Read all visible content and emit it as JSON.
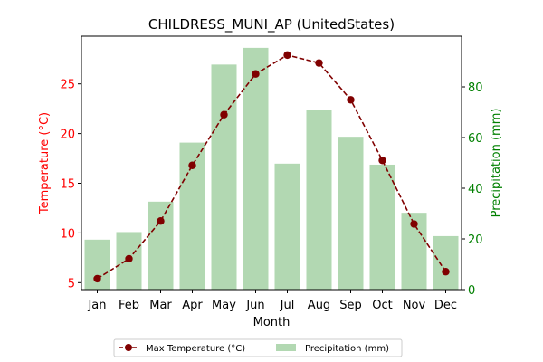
{
  "chart_data": {
    "type": "bar+line",
    "title": "CHILDRESS_MUNI_AP (UnitedStates)",
    "xlabel": "Month",
    "ylabel_left": "Temperature (°C)",
    "ylabel_right": "Precipitation (mm)",
    "categories": [
      "Jan",
      "Feb",
      "Mar",
      "Apr",
      "May",
      "Jun",
      "Jul",
      "Aug",
      "Sep",
      "Oct",
      "Nov",
      "Dec"
    ],
    "ylim_left": [
      4.3,
      29.8
    ],
    "ylim_right": [
      0,
      100
    ],
    "yticks_left": [
      5,
      10,
      15,
      20,
      25
    ],
    "yticks_right": [
      0,
      20,
      40,
      60,
      80
    ],
    "grid": false,
    "legend_placement": "bottom-center",
    "series": [
      {
        "name": "Max Temperature (°C)",
        "type": "line",
        "axis": "left",
        "color": "#800000",
        "values": [
          5.4,
          7.4,
          11.2,
          16.8,
          21.9,
          26.0,
          27.9,
          27.1,
          23.4,
          17.3,
          10.9,
          6.1
        ]
      },
      {
        "name": "Precipitation (mm)",
        "type": "bar",
        "axis": "right",
        "color": "#b2d8b2",
        "values": [
          19.7,
          22.7,
          34.7,
          58.0,
          88.8,
          95.4,
          49.7,
          71.0,
          60.3,
          49.3,
          30.3,
          21.1
        ]
      }
    ],
    "colors": {
      "left_axis": "#ff0000",
      "right_axis": "#008000"
    }
  }
}
